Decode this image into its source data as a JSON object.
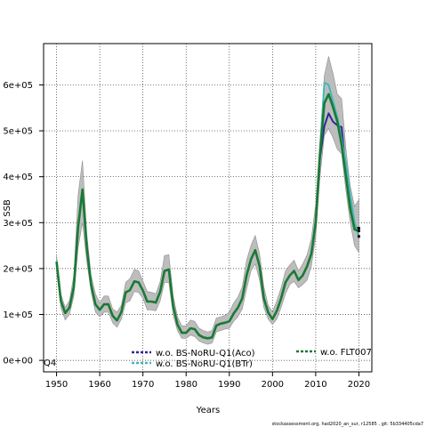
{
  "chart_data": {
    "type": "line",
    "xlabel": "Years",
    "ylabel": "SSB",
    "xlim": [
      1947,
      2023
    ],
    "ylim": [
      -25000,
      690000
    ],
    "x_ticks": [
      1950,
      1960,
      1970,
      1980,
      1990,
      2000,
      2010,
      2020
    ],
    "x_tick_labels": [
      "1950",
      "1960",
      "1970",
      "1980",
      "1990",
      "2000",
      "2010",
      "2020"
    ],
    "y_ticks": [
      0,
      100000,
      200000,
      300000,
      400000,
      500000,
      600000
    ],
    "y_tick_labels": [
      "0e+00",
      "1e+05",
      "2e+05",
      "3e+05",
      "4e+05",
      "5e+05",
      "6e+05"
    ],
    "grid": true,
    "legend_position": "bottom",
    "corner_label": "Q4",
    "footer": "stockassessment.org, had2020_an_sur, r12585 , git: 5b334405cda7",
    "colors": {
      "band": "#bdbdbd",
      "band_edge": "#8c8c8c",
      "aco": "#2b2b8f",
      "btr": "#44b8b8",
      "flt": "#1a7a35"
    },
    "legend": [
      {
        "label": "w.o. BS-NoRU-Q1(Aco)"
      },
      {
        "label": "w.o. BS-NoRU-Q1(BTr)"
      },
      {
        "label": "w.o. FLT007"
      }
    ],
    "x": [
      1950,
      1951,
      1952,
      1953,
      1954,
      1955,
      1956,
      1957,
      1958,
      1959,
      1960,
      1961,
      1962,
      1963,
      1964,
      1965,
      1966,
      1967,
      1968,
      1969,
      1970,
      1971,
      1972,
      1973,
      1974,
      1975,
      1976,
      1977,
      1978,
      1979,
      1980,
      1981,
      1982,
      1983,
      1984,
      1985,
      1986,
      1987,
      1988,
      1989,
      1990,
      1991,
      1992,
      1993,
      1994,
      1995,
      1996,
      1997,
      1998,
      1999,
      2000,
      2001,
      2002,
      2003,
      2004,
      2005,
      2006,
      2007,
      2008,
      2009,
      2010,
      2011,
      2012,
      2013,
      2014,
      2015,
      2016,
      2017,
      2018,
      2019,
      2020
    ],
    "band_lower": [
      195000,
      115000,
      88000,
      100000,
      140000,
      245000,
      300000,
      215000,
      150000,
      105000,
      95000,
      105000,
      105000,
      82000,
      72000,
      90000,
      125000,
      130000,
      150000,
      148000,
      135000,
      110000,
      110000,
      108000,
      130000,
      170000,
      170000,
      98000,
      65000,
      48000,
      48000,
      55000,
      52000,
      42000,
      38000,
      35000,
      38000,
      62000,
      65000,
      68000,
      70000,
      85000,
      95000,
      112000,
      155000,
      195000,
      210000,
      175000,
      115000,
      90000,
      78000,
      90000,
      115000,
      145000,
      165000,
      172000,
      158000,
      165000,
      175000,
      205000,
      270000,
      400000,
      490000,
      505000,
      485000,
      460000,
      450000,
      370000,
      300000,
      250000,
      235000
    ],
    "band_upper": [
      228000,
      145000,
      115000,
      130000,
      185000,
      360000,
      435000,
      275000,
      185000,
      145000,
      125000,
      140000,
      140000,
      112000,
      105000,
      120000,
      170000,
      178000,
      198000,
      195000,
      172000,
      150000,
      148000,
      145000,
      172000,
      228000,
      230000,
      140000,
      95000,
      75000,
      75000,
      88000,
      85000,
      70000,
      65000,
      62000,
      65000,
      92000,
      95000,
      98000,
      105000,
      125000,
      138000,
      160000,
      218000,
      250000,
      272000,
      232000,
      160000,
      120000,
      105000,
      130000,
      158000,
      195000,
      208000,
      218000,
      195000,
      210000,
      230000,
      265000,
      340000,
      480000,
      620000,
      662000,
      625000,
      580000,
      570000,
      460000,
      380000,
      335000,
      350000
    ],
    "series": [
      {
        "name": "w.o. BS-NoRU-Q1(Aco)",
        "values": [
          215000,
          130000,
          103000,
          115000,
          160000,
          290000,
          372000,
          245000,
          165000,
          122000,
          110000,
          122000,
          122000,
          97000,
          87000,
          105000,
          148000,
          153000,
          172000,
          170000,
          152000,
          128000,
          128000,
          126000,
          150000,
          195000,
          198000,
          118000,
          78000,
          60000,
          60000,
          70000,
          68000,
          55000,
          50000,
          48000,
          50000,
          76000,
          80000,
          82000,
          85000,
          102000,
          115000,
          135000,
          185000,
          220000,
          240000,
          205000,
          135000,
          104000,
          90000,
          108000,
          135000,
          170000,
          185000,
          195000,
          175000,
          185000,
          205000,
          232000,
          300000,
          440000,
          510000,
          538000,
          520000,
          512000,
          508000,
          410000,
          335000,
          290000,
          288000
        ]
      },
      {
        "name": "w.o. BS-NoRU-Q1(BTr)",
        "values": [
          215000,
          130000,
          103000,
          115000,
          160000,
          290000,
          372000,
          245000,
          165000,
          122000,
          110000,
          122000,
          122000,
          97000,
          87000,
          105000,
          148000,
          153000,
          172000,
          170000,
          152000,
          128000,
          128000,
          126000,
          150000,
          195000,
          198000,
          118000,
          78000,
          60000,
          60000,
          70000,
          68000,
          55000,
          50000,
          48000,
          50000,
          76000,
          80000,
          82000,
          85000,
          102000,
          115000,
          135000,
          185000,
          220000,
          240000,
          205000,
          135000,
          104000,
          90000,
          108000,
          135000,
          170000,
          185000,
          195000,
          175000,
          185000,
          205000,
          232000,
          305000,
          452000,
          605000,
          600000,
          565000,
          530000,
          482000,
          430000,
          360000,
          300000,
          270000
        ]
      },
      {
        "name": "w.o. FLT007",
        "values": [
          215000,
          130000,
          103000,
          115000,
          160000,
          290000,
          372000,
          245000,
          165000,
          122000,
          110000,
          122000,
          122000,
          97000,
          87000,
          105000,
          148000,
          153000,
          172000,
          170000,
          152000,
          128000,
          128000,
          126000,
          150000,
          195000,
          198000,
          118000,
          78000,
          60000,
          60000,
          70000,
          68000,
          55000,
          50000,
          48000,
          50000,
          76000,
          80000,
          82000,
          85000,
          102000,
          115000,
          135000,
          185000,
          220000,
          240000,
          205000,
          135000,
          104000,
          90000,
          108000,
          135000,
          170000,
          185000,
          195000,
          175000,
          185000,
          205000,
          232000,
          300000,
          450000,
          560000,
          580000,
          552000,
          520000,
          470000,
          400000,
          330000,
          285000,
          282000
        ]
      }
    ]
  }
}
